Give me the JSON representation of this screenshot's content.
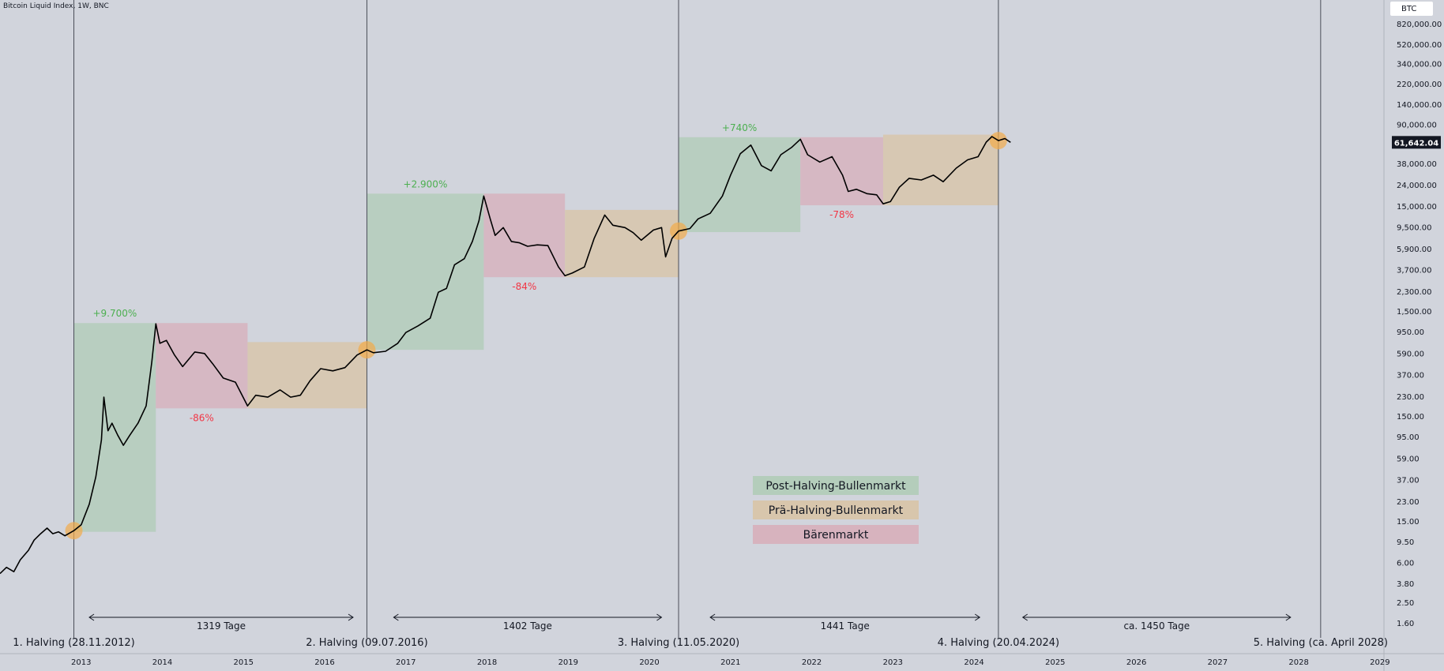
{
  "title": "Bitcoin Liquid Index, 1W, BNC",
  "currency_badge": "BTC",
  "last_price": "61,642.04",
  "colors": {
    "background": "#d1d4dc",
    "post_halving": "#b4cdbb",
    "pre_halving": "#d8c6ac",
    "bear": "#d7b3be",
    "halving_marker": "#f2ab4a",
    "up": "#4caf50",
    "down": "#f23645"
  },
  "legend": [
    {
      "label": "Post-Halving-Bullenmarkt",
      "kind": "post_halving"
    },
    {
      "label": "Prä-Halving-Bullenmarkt",
      "kind": "pre_halving"
    },
    {
      "label": "Bärenmarkt",
      "kind": "bear"
    }
  ],
  "chart_data": {
    "type": "line",
    "scale": "log",
    "xlim": [
      2012.0,
      2029.05
    ],
    "ylim": [
      1.6,
      1400000
    ],
    "price_ticks": [
      "820,000.00",
      "520,000.00",
      "340,000.00",
      "220,000.00",
      "140,000.00",
      "90,000.00",
      "38,000.00",
      "24,000.00",
      "15,000.00",
      "9,500.00",
      "5,900.00",
      "3,700.00",
      "2,300.00",
      "1,500.00",
      "950.00",
      "590.00",
      "370.00",
      "230.00",
      "150.00",
      "95.00",
      "59.00",
      "37.00",
      "23.00",
      "15.00",
      "9.50",
      "6.00",
      "3.80",
      "2.50",
      "1.60"
    ],
    "year_ticks": [
      "2013",
      "2014",
      "2015",
      "2016",
      "2017",
      "2018",
      "2019",
      "2020",
      "2021",
      "2022",
      "2023",
      "2024",
      "2025",
      "2026",
      "2027",
      "2028",
      "2029"
    ],
    "halvings": [
      {
        "x": 2012.91,
        "label": "1. Halving (28.11.2012)"
      },
      {
        "x": 2016.52,
        "label": "2. Halving (09.07.2016)"
      },
      {
        "x": 2020.36,
        "label": "3. Halving (11.05.2020)"
      },
      {
        "x": 2024.3,
        "label": "4. Halving (20.04.2024)"
      },
      {
        "x": 2028.27,
        "label": "5. Halving (ca. April 2028)"
      }
    ],
    "spans": [
      {
        "x0": 2013.1,
        "x1": 2016.35,
        "label": "1319 Tage"
      },
      {
        "x0": 2016.85,
        "x1": 2020.15,
        "label": "1402 Tage"
      },
      {
        "x0": 2020.75,
        "x1": 2024.07,
        "label": "1441 Tage"
      },
      {
        "x0": 2024.6,
        "x1": 2027.9,
        "label": "ca. 1450 Tage"
      }
    ],
    "zones": [
      {
        "kind": "post_halving",
        "x0": 2012.91,
        "x1": 2013.92,
        "y0": 12,
        "y1": 1170,
        "pct": "+9.700%"
      },
      {
        "kind": "bear",
        "x0": 2013.92,
        "x1": 2015.05,
        "y0": 180,
        "y1": 1170,
        "pct": "-86%"
      },
      {
        "kind": "pre_halving",
        "x0": 2015.05,
        "x1": 2016.52,
        "y0": 180,
        "y1": 770
      },
      {
        "kind": "post_halving",
        "x0": 2016.52,
        "x1": 2017.96,
        "y0": 650,
        "y1": 20000,
        "pct": "+2.900%"
      },
      {
        "kind": "bear",
        "x0": 2017.96,
        "x1": 2018.96,
        "y0": 3200,
        "y1": 20000,
        "pct": "-84%"
      },
      {
        "kind": "pre_halving",
        "x0": 2018.96,
        "x1": 2020.36,
        "y0": 3200,
        "y1": 14000
      },
      {
        "kind": "post_halving",
        "x0": 2020.36,
        "x1": 2021.86,
        "y0": 8600,
        "y1": 69000,
        "pct": "+740%"
      },
      {
        "kind": "bear",
        "x0": 2021.86,
        "x1": 2022.88,
        "y0": 15500,
        "y1": 69000,
        "pct": "-78%"
      },
      {
        "kind": "pre_halving",
        "x0": 2022.88,
        "x1": 2024.3,
        "y0": 15500,
        "y1": 73000
      }
    ],
    "series": [
      {
        "points": [
          [
            2012.0,
            4.8
          ],
          [
            2012.08,
            5.5
          ],
          [
            2012.17,
            5.0
          ],
          [
            2012.25,
            6.5
          ],
          [
            2012.35,
            8.0
          ],
          [
            2012.42,
            10.0
          ],
          [
            2012.5,
            11.5
          ],
          [
            2012.58,
            13.0
          ],
          [
            2012.65,
            11.5
          ],
          [
            2012.72,
            12.0
          ],
          [
            2012.8,
            11.0
          ],
          [
            2012.91,
            12.3
          ],
          [
            2013.0,
            14.0
          ],
          [
            2013.1,
            22.0
          ],
          [
            2013.18,
            40.0
          ],
          [
            2013.25,
            90.0
          ],
          [
            2013.28,
            230.0
          ],
          [
            2013.33,
            110.0
          ],
          [
            2013.38,
            130.0
          ],
          [
            2013.45,
            100.0
          ],
          [
            2013.52,
            80.0
          ],
          [
            2013.6,
            100.0
          ],
          [
            2013.7,
            130.0
          ],
          [
            2013.8,
            190.0
          ],
          [
            2013.87,
            500.0
          ],
          [
            2013.92,
            1150.0
          ],
          [
            2013.97,
            750.0
          ],
          [
            2014.05,
            800.0
          ],
          [
            2014.15,
            580.0
          ],
          [
            2014.25,
            450.0
          ],
          [
            2014.4,
            620.0
          ],
          [
            2014.52,
            600.0
          ],
          [
            2014.62,
            480.0
          ],
          [
            2014.75,
            350.0
          ],
          [
            2014.9,
            320.0
          ],
          [
            2015.05,
            190.0
          ],
          [
            2015.15,
            240.0
          ],
          [
            2015.3,
            230.0
          ],
          [
            2015.45,
            270.0
          ],
          [
            2015.58,
            230.0
          ],
          [
            2015.7,
            240.0
          ],
          [
            2015.82,
            330.0
          ],
          [
            2015.95,
            430.0
          ],
          [
            2016.1,
            410.0
          ],
          [
            2016.25,
            440.0
          ],
          [
            2016.4,
            580.0
          ],
          [
            2016.52,
            650.0
          ],
          [
            2016.6,
            610.0
          ],
          [
            2016.75,
            630.0
          ],
          [
            2016.9,
            750.0
          ],
          [
            2017.0,
            950.0
          ],
          [
            2017.15,
            1100.0
          ],
          [
            2017.3,
            1300.0
          ],
          [
            2017.4,
            2300.0
          ],
          [
            2017.5,
            2500.0
          ],
          [
            2017.6,
            4200.0
          ],
          [
            2017.72,
            4800.0
          ],
          [
            2017.82,
            7000.0
          ],
          [
            2017.9,
            11000.0
          ],
          [
            2017.96,
            19000.0
          ],
          [
            2018.04,
            11500.0
          ],
          [
            2018.1,
            8000.0
          ],
          [
            2018.2,
            9500.0
          ],
          [
            2018.3,
            7000.0
          ],
          [
            2018.4,
            6800.0
          ],
          [
            2018.5,
            6300.0
          ],
          [
            2018.62,
            6500.0
          ],
          [
            2018.75,
            6400.0
          ],
          [
            2018.88,
            4000.0
          ],
          [
            2018.96,
            3300.0
          ],
          [
            2019.05,
            3500.0
          ],
          [
            2019.2,
            4000.0
          ],
          [
            2019.32,
            7500.0
          ],
          [
            2019.45,
            12500.0
          ],
          [
            2019.55,
            10000.0
          ],
          [
            2019.7,
            9500.0
          ],
          [
            2019.8,
            8500.0
          ],
          [
            2019.9,
            7200.0
          ],
          [
            2020.05,
            9000.0
          ],
          [
            2020.15,
            9500.0
          ],
          [
            2020.2,
            5000.0
          ],
          [
            2020.28,
            7500.0
          ],
          [
            2020.36,
            8800.0
          ],
          [
            2020.5,
            9300.0
          ],
          [
            2020.6,
            11500.0
          ],
          [
            2020.75,
            13000.0
          ],
          [
            2020.9,
            19000.0
          ],
          [
            2021.0,
            30000.0
          ],
          [
            2021.12,
            48000.0
          ],
          [
            2021.25,
            58000.0
          ],
          [
            2021.38,
            37000.0
          ],
          [
            2021.5,
            33000.0
          ],
          [
            2021.62,
            47000.0
          ],
          [
            2021.75,
            55000.0
          ],
          [
            2021.86,
            66000.0
          ],
          [
            2021.95,
            47000.0
          ],
          [
            2022.1,
            40000.0
          ],
          [
            2022.25,
            45000.0
          ],
          [
            2022.38,
            30000.0
          ],
          [
            2022.45,
            21000.0
          ],
          [
            2022.55,
            22000.0
          ],
          [
            2022.68,
            20000.0
          ],
          [
            2022.8,
            19500.0
          ],
          [
            2022.88,
            16000.0
          ],
          [
            2022.97,
            16800.0
          ],
          [
            2023.08,
            23000.0
          ],
          [
            2023.2,
            28000.0
          ],
          [
            2023.35,
            27000.0
          ],
          [
            2023.5,
            30000.0
          ],
          [
            2023.62,
            26000.0
          ],
          [
            2023.78,
            35000.0
          ],
          [
            2023.92,
            42000.0
          ],
          [
            2024.05,
            45000.0
          ],
          [
            2024.15,
            62000.0
          ],
          [
            2024.22,
            70000.0
          ],
          [
            2024.3,
            64000.0
          ],
          [
            2024.38,
            67000.0
          ],
          [
            2024.45,
            61642.0
          ]
        ]
      }
    ]
  }
}
